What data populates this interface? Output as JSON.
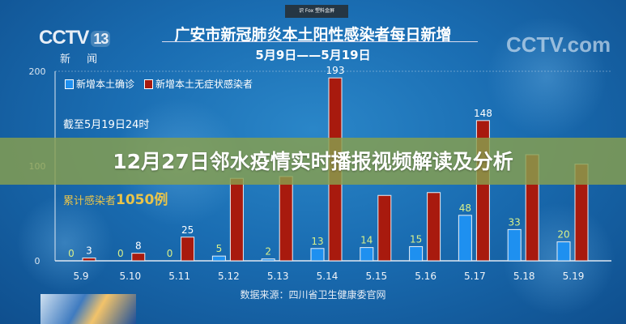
{
  "branding": {
    "channel_logo": "CCTV",
    "channel_number": "13",
    "channel_sub": "新 闻",
    "watermark": "CCTV.com",
    "badge": "识 Fox 塑料金屏"
  },
  "headline": "12月27日邻水疫情实时播报视频解读及分析",
  "notes": {
    "as_of": "截至5月19日24时",
    "cumulative_prefix": "累计感染者",
    "cumulative_value": "1050例"
  },
  "source": "数据来源：四川省卫生健康委官网",
  "colors": {
    "confirmed": "#1e90f0",
    "asymptomatic": "#a81a0e",
    "overlay": "#89a04e"
  },
  "chart_data": {
    "type": "bar",
    "title": "广安市新冠肺炎本土阳性感染者每日新增",
    "subtitle": "5月9日——5月19日",
    "categories": [
      "5.9",
      "5.10",
      "5.11",
      "5.12",
      "5.13",
      "5.14",
      "5.15",
      "5.16",
      "5.17",
      "5.18",
      "5.19"
    ],
    "series": [
      {
        "name": "新增本土确诊",
        "values": [
          0,
          0,
          0,
          5,
          2,
          13,
          14,
          15,
          48,
          33,
          20
        ]
      },
      {
        "name": "新增本土无症状感染者",
        "values": [
          3,
          8,
          25,
          87,
          89,
          193,
          69,
          72,
          148,
          112,
          102
        ]
      }
    ],
    "ylim": [
      0,
      200
    ],
    "yticks": [
      "0",
      "100",
      "200"
    ],
    "legend": "top-left",
    "grid": false
  }
}
